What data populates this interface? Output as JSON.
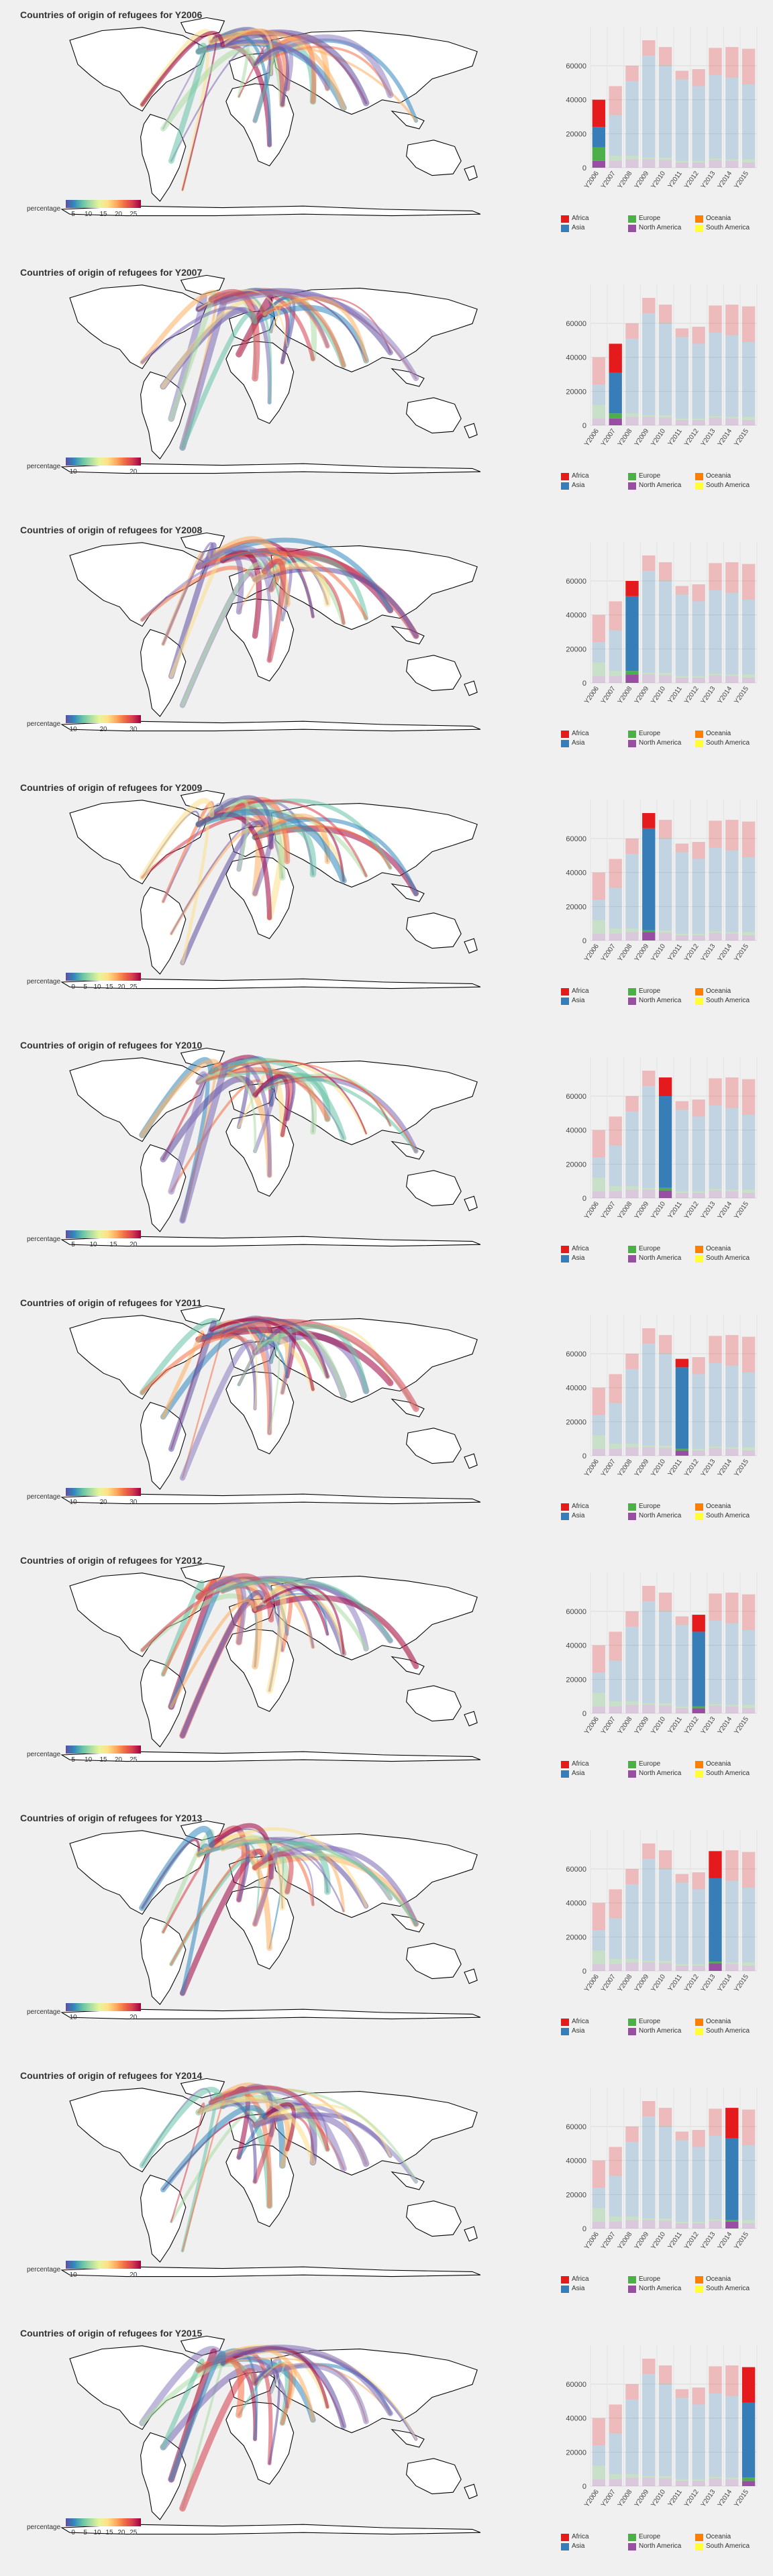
{
  "title_prefix": "Countries of origin of refugees for",
  "legend_percentage_label": "percentage",
  "continent_colors": {
    "Africa": "#e41a1c",
    "Asia": "#377eb8",
    "Europe": "#4daf4a",
    "North America": "#984ea3",
    "Oceania": "#ff7f00",
    "South America": "#ffff33"
  },
  "continents": [
    "Africa",
    "Asia",
    "Europe",
    "North America",
    "Oceania",
    "South America"
  ],
  "chart_data": {
    "type": "bar",
    "categories": [
      "Y2006",
      "Y2007",
      "Y2008",
      "Y2009",
      "Y2010",
      "Y2011",
      "Y2012",
      "Y2013",
      "Y2014",
      "Y2015"
    ],
    "ylim": [
      0,
      75000
    ],
    "yticks": [
      0,
      20000,
      40000,
      60000
    ],
    "stacked": true,
    "series": [
      {
        "name": "North America",
        "values": [
          4000,
          4000,
          5000,
          5000,
          4500,
          3000,
          3000,
          4500,
          4000,
          3000
        ]
      },
      {
        "name": "Europe",
        "values": [
          8000,
          3000,
          2000,
          1000,
          1500,
          1000,
          1000,
          1000,
          1000,
          2000
        ]
      },
      {
        "name": "Asia",
        "values": [
          12000,
          24000,
          44000,
          60000,
          54000,
          48000,
          44000,
          49000,
          48000,
          44000
        ]
      },
      {
        "name": "Africa",
        "values": [
          16000,
          17000,
          9000,
          9000,
          11000,
          5000,
          10000,
          16000,
          18000,
          21000
        ]
      }
    ]
  },
  "panels": [
    {
      "year": "Y2006",
      "ticks": [
        "5",
        "10",
        "15",
        "20",
        "25"
      ]
    },
    {
      "year": "Y2007",
      "ticks": [
        "10",
        "20"
      ]
    },
    {
      "year": "Y2008",
      "ticks": [
        "10",
        "20",
        "30"
      ]
    },
    {
      "year": "Y2009",
      "ticks": [
        "0",
        "5",
        "10",
        "15",
        "20",
        "25"
      ]
    },
    {
      "year": "Y2010",
      "ticks": [
        "5",
        "10",
        "15",
        "20"
      ]
    },
    {
      "year": "Y2011",
      "ticks": [
        "10",
        "20",
        "30"
      ]
    },
    {
      "year": "Y2012",
      "ticks": [
        "5",
        "10",
        "15",
        "20",
        "25"
      ]
    },
    {
      "year": "Y2013",
      "ticks": [
        "10",
        "20"
      ]
    },
    {
      "year": "Y2014",
      "ticks": [
        "10",
        "20"
      ]
    },
    {
      "year": "Y2015",
      "ticks": [
        "0",
        "5",
        "10",
        "15",
        "20",
        "25"
      ]
    }
  ]
}
